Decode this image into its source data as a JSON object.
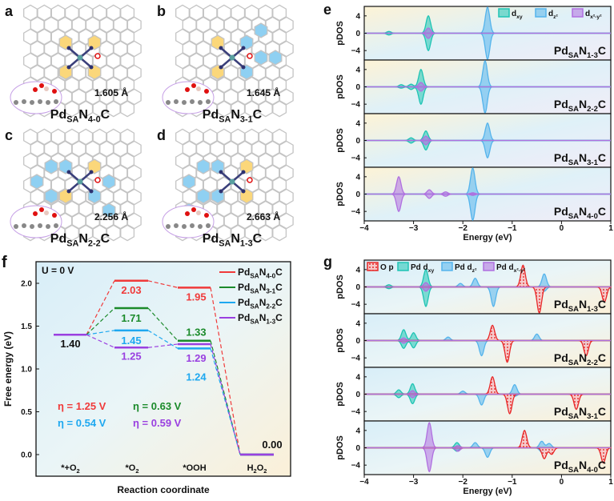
{
  "panel_letters": [
    "a",
    "b",
    "c",
    "d",
    "e",
    "f",
    "g"
  ],
  "structures": [
    {
      "letter": "a",
      "distance": "1.605 Å",
      "name": [
        "Pd",
        "SA",
        "N",
        "4-0",
        "C"
      ]
    },
    {
      "letter": "b",
      "distance": "1.645 Å",
      "name": [
        "Pd",
        "SA",
        "N",
        "3-1",
        "C"
      ]
    },
    {
      "letter": "c",
      "distance": "2.256 Å",
      "name": [
        "Pd",
        "SA",
        "N",
        "2-2",
        "C"
      ]
    },
    {
      "letter": "d",
      "distance": "2.663 Å",
      "name": [
        "Pd",
        "SA",
        "N",
        "1-3",
        "C"
      ]
    }
  ],
  "colors": {
    "dxy": "#1fc4b4",
    "dz2": "#55b4ec",
    "dx2y2": "#b070e0",
    "Op": "#e82828",
    "N40": "#f03a3a",
    "N31": "#1a8a2a",
    "N22": "#1ea8f0",
    "N13": "#9a40e0"
  },
  "chart_data": [
    {
      "panel": "e",
      "type": "area",
      "xlabel": "Energy (eV)",
      "ylabel": "pDOS",
      "xlim": [
        -4,
        1
      ],
      "ylim": [
        -6,
        6
      ],
      "xticks": [
        "-4",
        "-3",
        "-2",
        "-1",
        "0",
        "1"
      ],
      "yticks": [
        "4",
        "0",
        "-4"
      ],
      "legend": [
        {
          "key": "dxy",
          "label": [
            "d",
            "xy"
          ]
        },
        {
          "key": "dz2",
          "label": [
            "d",
            "z²"
          ]
        },
        {
          "key": "dx2y2",
          "label": [
            "d",
            "x²-y²"
          ]
        }
      ],
      "subplots": [
        {
          "name": [
            "Pd",
            "SA",
            "N",
            "1-3",
            "C"
          ],
          "peaks": {
            "dxy": [
              [
                -2.7,
                4,
                -4
              ],
              [
                -3.5,
                0.4,
                -0.4
              ]
            ],
            "dz2": [
              [
                -1.5,
                6,
                -6
              ]
            ],
            "dx2y2": [
              [
                -2.7,
                1.2,
                -1.2
              ]
            ]
          }
        },
        {
          "name": [
            "Pd",
            "SA",
            "N",
            "2-2",
            "C"
          ],
          "peaks": {
            "dxy": [
              [
                -2.85,
                4,
                -4
              ],
              [
                -3.25,
                0.5,
                -0.3
              ],
              [
                -3.05,
                0.6,
                -0.6
              ]
            ],
            "dz2": [
              [
                -1.55,
                6,
                -6
              ]
            ],
            "dx2y2": [
              [
                -2.85,
                1,
                -1
              ]
            ]
          }
        },
        {
          "name": [
            "Pd",
            "SA",
            "N",
            "3-1",
            "C"
          ],
          "peaks": {
            "dxy": [
              [
                -2.75,
                2.2,
                -2.2
              ],
              [
                -3.05,
                0.6,
                -0.6
              ]
            ],
            "dz2": [
              [
                -1.5,
                4,
                -4
              ]
            ],
            "dx2y2": [
              [
                -2.75,
                1,
                -1
              ]
            ]
          }
        },
        {
          "name": [
            "Pd",
            "SA",
            "N",
            "4-0",
            "C"
          ],
          "peaks": {
            "dxy": [],
            "dz2": [
              [
                -1.8,
                6,
                -6
              ]
            ],
            "dx2y2": [
              [
                -3.3,
                4,
                -4
              ],
              [
                -2.68,
                1,
                -1
              ],
              [
                -2.35,
                0.5,
                -0.5
              ],
              [
                -1.8,
                0.3,
                -0.3
              ]
            ]
          }
        }
      ]
    },
    {
      "panel": "f",
      "type": "line",
      "xlabel": "Reaction coordinate",
      "ylabel": "Free energy (eV)",
      "ylim": [
        -0.25,
        2.25
      ],
      "condition": "U = 0 V",
      "categories": [
        [
          "*+O",
          "2"
        ],
        [
          "*O",
          "2"
        ],
        [
          "*OOH"
        ],
        [
          "H",
          "2",
          "O",
          "2"
        ]
      ],
      "yticks": [
        "0.0",
        "0.5",
        "1.0",
        "1.5",
        "2.0"
      ],
      "series": [
        {
          "key": "N40",
          "name": [
            "Pd",
            "SA",
            "N",
            "4-0",
            "C"
          ],
          "values": [
            1.4,
            2.03,
            1.95,
            0.0
          ],
          "eta": "η = 1.25 V"
        },
        {
          "key": "N31",
          "name": [
            "Pd",
            "SA",
            "N",
            "3-1",
            "C"
          ],
          "values": [
            1.4,
            1.71,
            1.33,
            0.0
          ],
          "eta": "η = 0.63 V"
        },
        {
          "key": "N22",
          "name": [
            "Pd",
            "SA",
            "N",
            "2-2",
            "C"
          ],
          "values": [
            1.4,
            1.45,
            1.24,
            0.0
          ],
          "eta": "η = 0.54 V"
        },
        {
          "key": "N13",
          "name": [
            "Pd",
            "SA",
            "N",
            "1-3",
            "C"
          ],
          "values": [
            1.4,
            1.25,
            1.29,
            0.0
          ],
          "eta": "η = 0.59 V"
        }
      ],
      "value_labels": {
        "start": "1.40",
        "end": "0.00",
        "N40": [
          "2.03",
          "1.95"
        ],
        "N31": [
          "1.71",
          "1.33"
        ],
        "N22": [
          "1.45",
          "1.24"
        ],
        "N13": [
          "1.25",
          "1.29"
        ]
      }
    },
    {
      "panel": "g",
      "type": "area",
      "xlabel": "Energy (eV)",
      "ylabel": "pDOS",
      "xlim": [
        -4,
        1
      ],
      "ylim": [
        -6,
        6
      ],
      "xticks": [
        "-4",
        "-3",
        "-2",
        "-1",
        "0",
        "1"
      ],
      "yticks": [
        "4",
        "0",
        "-4"
      ],
      "legend": [
        {
          "key": "Op",
          "label": [
            "O p"
          ]
        },
        {
          "key": "dxy",
          "label": [
            "Pd d",
            "xy"
          ]
        },
        {
          "key": "dz2",
          "label": [
            "Pd d",
            "z²"
          ]
        },
        {
          "key": "dx2y2",
          "label": [
            "Pd d",
            "x²-y²"
          ]
        }
      ],
      "subplots": [
        {
          "name": [
            "Pd",
            "SA",
            "N",
            "1-3",
            "C"
          ],
          "peaks": {
            "Op": [
              [
                -0.78,
                5,
                0
              ],
              [
                -0.45,
                0,
                -6
              ],
              [
                0.87,
                0,
                -3.5
              ]
            ],
            "dxy": [
              [
                -2.75,
                4,
                -4.5
              ],
              [
                -3.5,
                0.5,
                -0.4
              ]
            ],
            "dz2": [
              [
                -1.75,
                2,
                0
              ],
              [
                -2.05,
                0.8,
                0
              ],
              [
                -1.38,
                0,
                -4.5
              ],
              [
                -0.35,
                3,
                -1
              ],
              [
                0.87,
                0,
                -1
              ]
            ],
            "dx2y2": [
              [
                -2.75,
                1,
                -1
              ]
            ]
          }
        },
        {
          "name": [
            "Pd",
            "SA",
            "N",
            "2-2",
            "C"
          ],
          "peaks": {
            "Op": [
              [
                -1.4,
                3.5,
                0
              ],
              [
                -1.1,
                0,
                -5
              ],
              [
                0.5,
                0,
                -3.5
              ]
            ],
            "dxy": [
              [
                -3.2,
                2.5,
                -1.8
              ],
              [
                -3.0,
                1.8,
                -1.7
              ]
            ],
            "dz2": [
              [
                -1.62,
                0,
                -3.5
              ],
              [
                -0.5,
                1.5,
                0
              ],
              [
                -2.3,
                0.8,
                0
              ],
              [
                0.5,
                0,
                -1
              ]
            ],
            "dx2y2": [
              [
                -3.2,
                0.6,
                -0.6
              ]
            ]
          }
        },
        {
          "name": [
            "Pd",
            "SA",
            "N",
            "3-1",
            "C"
          ],
          "peaks": {
            "Op": [
              [
                -1.4,
                4,
                0
              ],
              [
                -1.05,
                0,
                -4.5
              ],
              [
                0.3,
                0,
                -3.5
              ]
            ],
            "dxy": [
              [
                -3.3,
                1,
                -0.8
              ],
              [
                -3.02,
                2.4,
                -2.2
              ]
            ],
            "dz2": [
              [
                -1.62,
                0,
                -2.5
              ],
              [
                -0.95,
                2.2,
                -0.5
              ],
              [
                -2.0,
                0.7,
                0
              ]
            ],
            "dx2y2": [
              [
                -3.02,
                0.8,
                -0.8
              ]
            ]
          }
        },
        {
          "name": [
            "Pd",
            "SA",
            "N",
            "4-0",
            "C"
          ],
          "peaks": {
            "Op": [
              [
                -0.75,
                4,
                0
              ],
              [
                -0.35,
                0,
                -2.5
              ],
              [
                -0.2,
                0,
                -1.5
              ],
              [
                0.85,
                0,
                -3.5
              ]
            ],
            "dxy": [
              [
                -2.12,
                1.2,
                -0.8
              ]
            ],
            "dz2": [
              [
                -1.75,
                1.2,
                0
              ],
              [
                -1.5,
                0,
                -2.2
              ],
              [
                -0.4,
                1.5,
                -1
              ],
              [
                -0.25,
                1,
                0
              ]
            ],
            "dx2y2": [
              [
                -2.68,
                5.8,
                -5.5
              ],
              [
                -2.1,
                0.5,
                -0.8
              ]
            ]
          }
        }
      ]
    }
  ]
}
